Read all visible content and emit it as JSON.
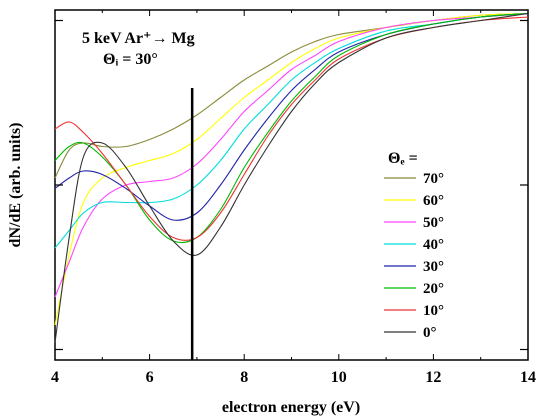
{
  "chart_data": {
    "type": "line",
    "title": "",
    "annotation_line1": "5 keV Ar⁺→ Mg",
    "annotation_line2": "Θᵢ = 30°",
    "xlabel": "electron energy (eV)",
    "ylabel": "dN/dE (arb. units)",
    "xlim": [
      4,
      14
    ],
    "ylim": [
      0,
      1
    ],
    "xticks": [
      4,
      6,
      8,
      10,
      12,
      14
    ],
    "xtick_labels": [
      "4",
      "6",
      "8",
      "10",
      "12",
      "14"
    ],
    "grid": false,
    "legend_title": "Θₑ =",
    "legend_position": "right",
    "vertical_marker_x": 6.9,
    "series": [
      {
        "name": "70°",
        "color": "#8b8b3a",
        "x": [
          4,
          4.3,
          4.6,
          5,
          5.5,
          6,
          6.5,
          7,
          7.5,
          8,
          8.5,
          9,
          9.5,
          10,
          11,
          12,
          13,
          14
        ],
        "y": [
          0.52,
          0.6,
          0.62,
          0.61,
          0.61,
          0.63,
          0.66,
          0.7,
          0.75,
          0.8,
          0.84,
          0.88,
          0.91,
          0.93,
          0.95,
          0.97,
          0.985,
          0.99
        ]
      },
      {
        "name": "60°",
        "color": "#ffff00",
        "x": [
          4,
          4.3,
          4.6,
          5,
          5.5,
          6,
          6.5,
          7,
          7.5,
          8,
          8.5,
          9,
          9.5,
          10,
          11,
          12,
          13,
          14
        ],
        "y": [
          0.1,
          0.3,
          0.45,
          0.52,
          0.55,
          0.57,
          0.59,
          0.63,
          0.69,
          0.75,
          0.8,
          0.85,
          0.89,
          0.92,
          0.95,
          0.97,
          0.985,
          0.99
        ]
      },
      {
        "name": "50°",
        "color": "#ff44ff",
        "x": [
          4,
          4.3,
          4.6,
          5,
          5.5,
          6,
          6.5,
          7,
          7.5,
          8,
          8.5,
          9,
          9.5,
          10,
          11,
          12,
          13,
          14
        ],
        "y": [
          0.18,
          0.28,
          0.38,
          0.46,
          0.5,
          0.51,
          0.52,
          0.56,
          0.63,
          0.71,
          0.77,
          0.83,
          0.87,
          0.91,
          0.95,
          0.97,
          0.98,
          0.99
        ]
      },
      {
        "name": "40°",
        "color": "#00dddd",
        "x": [
          4,
          4.3,
          4.6,
          5,
          5.5,
          6,
          6.5,
          7,
          7.5,
          8,
          8.5,
          9,
          9.5,
          10,
          11,
          12,
          13,
          14
        ],
        "y": [
          0.32,
          0.37,
          0.42,
          0.45,
          0.45,
          0.45,
          0.46,
          0.5,
          0.57,
          0.66,
          0.73,
          0.8,
          0.85,
          0.89,
          0.94,
          0.96,
          0.98,
          0.99
        ]
      },
      {
        "name": "30°",
        "color": "#2222aa",
        "x": [
          4,
          4.3,
          4.6,
          5,
          5.5,
          6,
          6.5,
          7,
          7.5,
          8,
          8.5,
          9,
          9.5,
          10,
          11,
          12,
          13,
          14
        ],
        "y": [
          0.49,
          0.52,
          0.54,
          0.53,
          0.49,
          0.44,
          0.4,
          0.42,
          0.5,
          0.6,
          0.69,
          0.77,
          0.83,
          0.88,
          0.93,
          0.96,
          0.98,
          0.99
        ]
      },
      {
        "name": "20°",
        "color": "#00bb00",
        "x": [
          4,
          4.3,
          4.6,
          5,
          5.5,
          6,
          6.5,
          7,
          7.5,
          8,
          8.5,
          9,
          9.5,
          10,
          11,
          12,
          13,
          14
        ],
        "y": [
          0.57,
          0.61,
          0.62,
          0.58,
          0.5,
          0.4,
          0.34,
          0.35,
          0.43,
          0.55,
          0.65,
          0.74,
          0.81,
          0.87,
          0.93,
          0.96,
          0.98,
          0.99
        ]
      },
      {
        "name": "10°",
        "color": "#ee3333",
        "x": [
          4,
          4.3,
          4.6,
          5,
          5.5,
          6,
          6.5,
          7,
          7.5,
          8,
          8.5,
          9,
          9.5,
          10,
          11,
          12,
          13,
          14
        ],
        "y": [
          0.66,
          0.68,
          0.65,
          0.59,
          0.5,
          0.41,
          0.35,
          0.35,
          0.42,
          0.53,
          0.64,
          0.73,
          0.8,
          0.86,
          0.92,
          0.95,
          0.97,
          0.98
        ]
      },
      {
        "name": "0°",
        "color": "#333333",
        "x": [
          4,
          4.3,
          4.6,
          5,
          5.5,
          6,
          6.5,
          7,
          7.5,
          8,
          8.5,
          9,
          9.5,
          10,
          11,
          12,
          13,
          14
        ],
        "y": [
          0.05,
          0.35,
          0.58,
          0.62,
          0.55,
          0.44,
          0.34,
          0.3,
          0.38,
          0.5,
          0.61,
          0.71,
          0.79,
          0.85,
          0.92,
          0.95,
          0.97,
          0.99
        ]
      }
    ]
  }
}
